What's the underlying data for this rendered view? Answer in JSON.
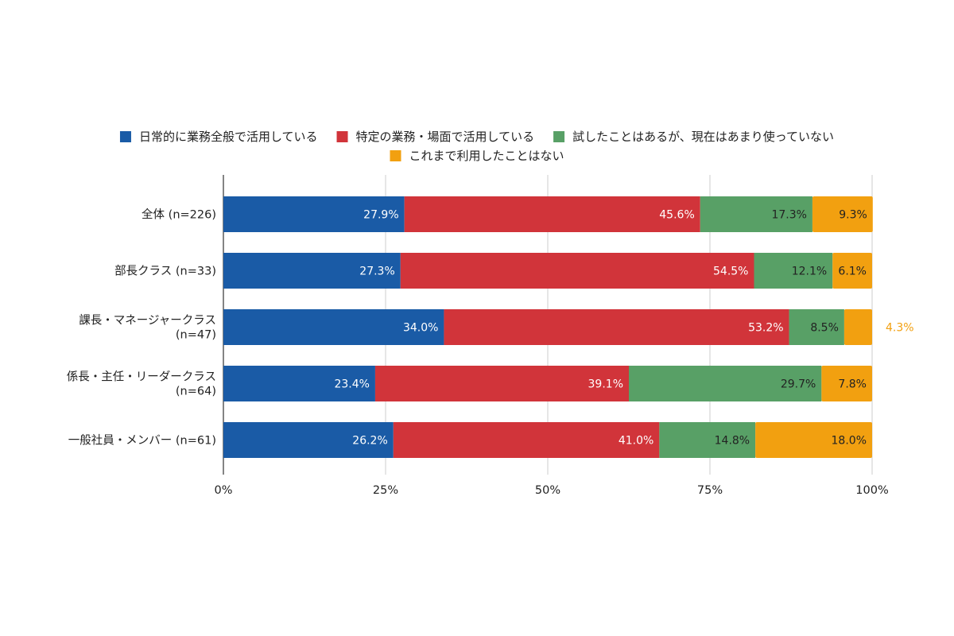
{
  "chart_data": {
    "type": "bar",
    "orientation": "horizontal",
    "stacked": true,
    "normalized": true,
    "categories": [
      [
        "全体 (n=226)"
      ],
      [
        "部長クラス (n=33)"
      ],
      [
        "課長・マネージャークラス",
        "(n=47)"
      ],
      [
        "係長・主任・リーダークラス",
        "(n=64)"
      ],
      [
        "一般社員・メンバー (n=61)"
      ]
    ],
    "series": [
      {
        "name": "日常的に業務全般で活用している",
        "color": "#1a5ba6",
        "values": [
          27.9,
          27.3,
          34.0,
          23.4,
          26.2
        ]
      },
      {
        "name": "特定の業務・場面で活用している",
        "color": "#d1343a",
        "values": [
          45.6,
          54.5,
          53.2,
          39.1,
          41.0
        ]
      },
      {
        "name": "試したことはあるが、現在はあまり使っていない",
        "color": "#58a066",
        "values": [
          17.3,
          12.1,
          8.5,
          29.7,
          14.8
        ]
      },
      {
        "name": "これまで利用したことはない",
        "color": "#f2a010",
        "values": [
          9.3,
          6.1,
          4.3,
          7.8,
          18.0
        ]
      }
    ],
    "xlim": [
      0,
      100
    ],
    "x_ticks": [
      "0%",
      "25%",
      "50%",
      "75%",
      "100%"
    ],
    "grid": "vertical",
    "legend_position": "top",
    "value_suffix": "%"
  }
}
